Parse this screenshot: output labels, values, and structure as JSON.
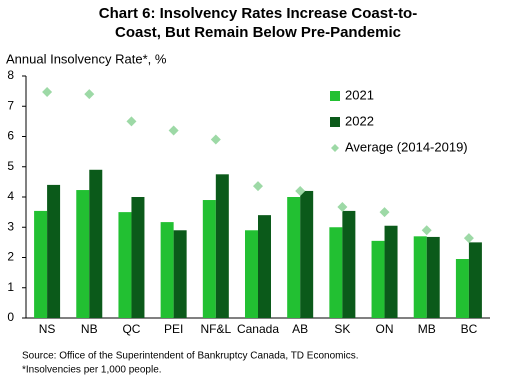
{
  "chart_data": {
    "type": "bar",
    "title": [
      "Chart 6: Insolvency Rates Increase Coast-to-",
      "Coast, But Remain Below Pre-Pandemic"
    ],
    "y_label": "Annual Insolvency Rate*, %",
    "categories": [
      "NS",
      "NB",
      "QC",
      "PEI",
      "NF&L",
      "Canada",
      "AB",
      "SK",
      "ON",
      "MB",
      "BC"
    ],
    "series": [
      {
        "name": "2021",
        "color": "#22c032",
        "values": [
          3.54,
          4.23,
          3.5,
          3.17,
          3.9,
          2.9,
          4.0,
          3.0,
          2.55,
          2.7,
          1.95
        ]
      },
      {
        "name": "2022",
        "color": "#0b5a1a",
        "values": [
          4.4,
          4.9,
          4.0,
          2.9,
          4.75,
          3.4,
          4.2,
          3.54,
          3.05,
          2.68,
          2.5
        ]
      },
      {
        "name": "Average (2014-2019)",
        "color": "#9dd9a6",
        "marker": "diamond",
        "values": [
          7.47,
          7.4,
          6.5,
          6.2,
          5.9,
          4.36,
          4.2,
          3.67,
          3.5,
          2.9,
          2.64
        ]
      }
    ],
    "ylim": [
      0,
      8
    ],
    "yticks": [
      0,
      1,
      2,
      3,
      4,
      5,
      6,
      7,
      8
    ],
    "grid": false,
    "notes": [
      "Source: Office of the Superintendent of Bankruptcy Canada, TD Economics.",
      "*Insolvencies per 1,000 people."
    ]
  }
}
